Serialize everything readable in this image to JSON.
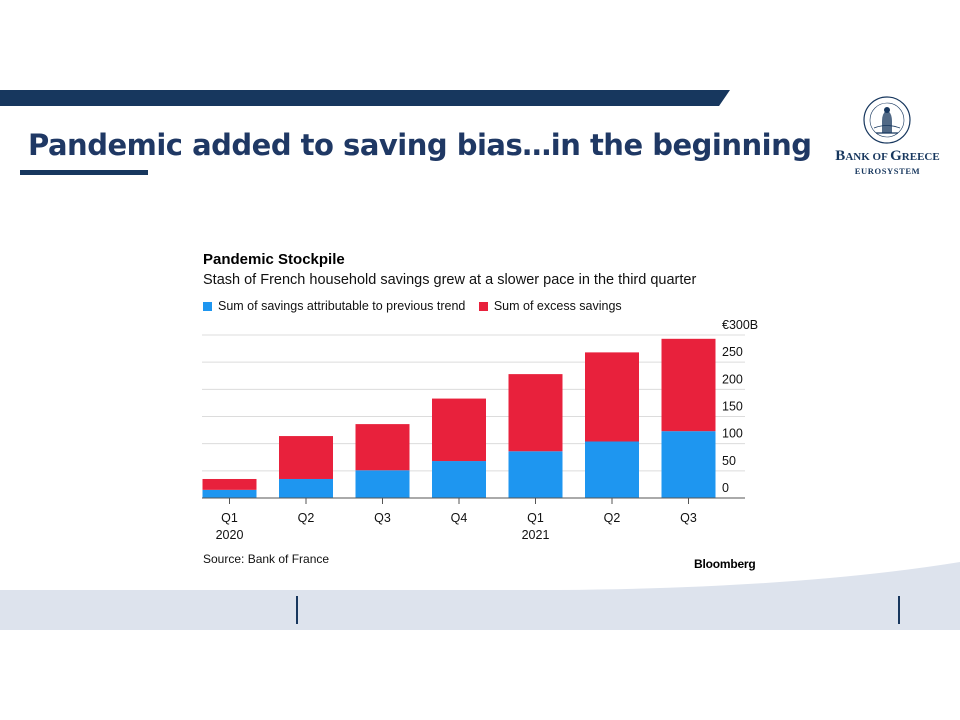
{
  "slide": {
    "title": "Pandemic added to saving bias…in the beginning"
  },
  "logo": {
    "name": "Bank of Greece",
    "subtitle": "EUROSYSTEM"
  },
  "colors": {
    "navy": "#17375e",
    "title_text": "#1f3864",
    "trend_series": "#1e96f0",
    "excess_series": "#e8213c",
    "footer_band": "#dde3ed"
  },
  "chart_data": {
    "type": "bar",
    "stacked": true,
    "title": "Pandemic Stockpile",
    "subtitle": "Stash of French household savings grew at a slower pace in the third quarter",
    "categories": [
      "Q1",
      "Q2",
      "Q3",
      "Q4",
      "Q1",
      "Q2",
      "Q3"
    ],
    "category_years": [
      "2020",
      "",
      "",
      "",
      "2021",
      "",
      ""
    ],
    "series": [
      {
        "name": "Sum of savings attributable to previous trend",
        "color": "#1e96f0",
        "values": [
          15,
          35,
          51,
          68,
          86,
          104,
          123
        ]
      },
      {
        "name": "Sum of excess savings",
        "color": "#e8213c",
        "values": [
          20,
          79,
          85,
          115,
          142,
          164,
          170
        ]
      }
    ],
    "ylim": [
      0,
      300
    ],
    "yticks": [
      0,
      50,
      100,
      150,
      200,
      250,
      300
    ],
    "ytick_labels": [
      "0",
      "50",
      "100",
      "150",
      "200",
      "250",
      "€300B"
    ],
    "y_axis_position": "right",
    "grid": true,
    "legend_position": "top-left",
    "source": "Source: Bank of France",
    "credit": "Bloomberg"
  }
}
